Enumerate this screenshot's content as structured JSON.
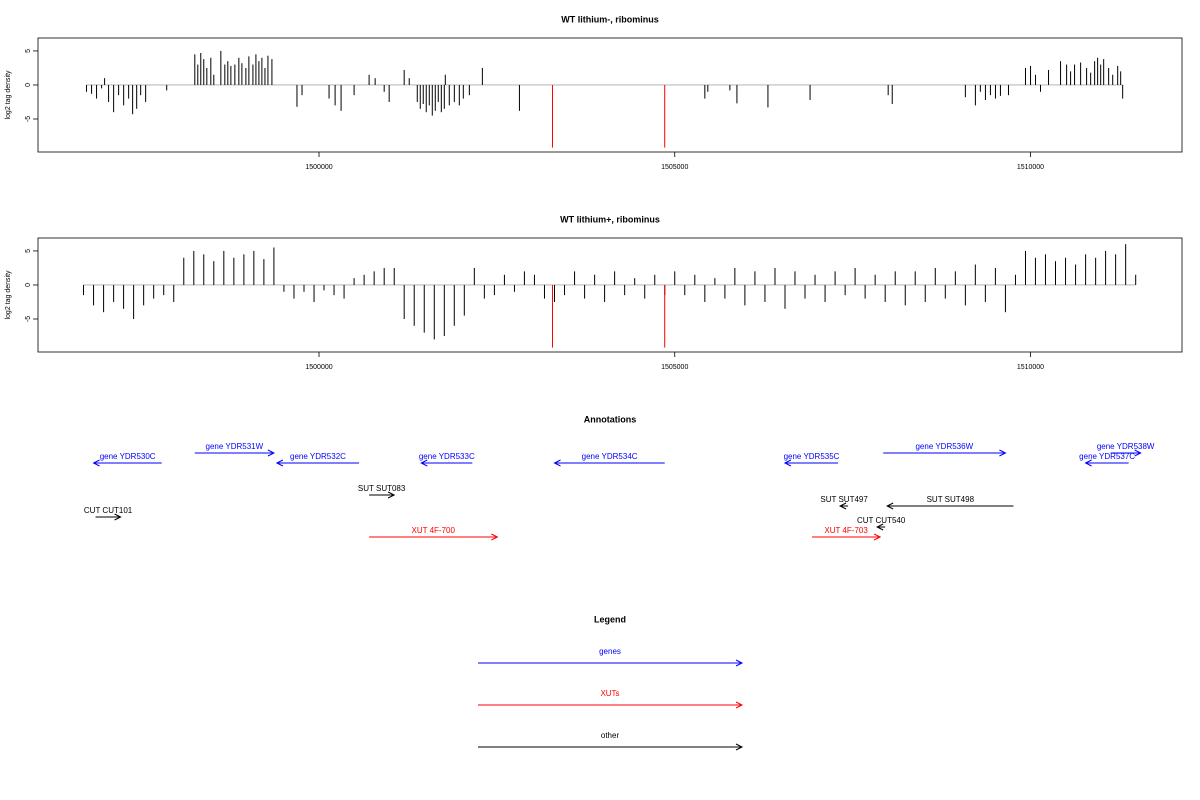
{
  "chart_data": [
    {
      "type": "bar",
      "title": "WT lithium-, ribominus",
      "y_label": "log2 tag density",
      "color": "#000000",
      "xlim": [
        1496050,
        1512130
      ],
      "xticks": [
        1500000,
        1505000,
        1510000
      ],
      "ylim": [
        -9.85,
        6.9
      ],
      "yticks": [
        -5,
        0,
        5
      ],
      "x": [
        1496732,
        1496803,
        1496873,
        1496944,
        1496986,
        1497042,
        1497113,
        1497183,
        1497254,
        1497324,
        1497380,
        1497437,
        1497493,
        1497563,
        1497859,
        1498254,
        1498296,
        1498338,
        1498380,
        1498423,
        1498479,
        1498521,
        1498620,
        1498676,
        1498718,
        1498761,
        1498817,
        1498873,
        1498916,
        1498972,
        1499014,
        1499071,
        1499113,
        1499155,
        1499197,
        1499240,
        1499282,
        1499338,
        1499690,
        1499761,
        1500141,
        1500226,
        1500310,
        1500493,
        1500704,
        1500789,
        1500916,
        1500986,
        1501197,
        1501268,
        1501381,
        1501423,
        1501465,
        1501507,
        1501550,
        1501592,
        1501634,
        1501676,
        1501719,
        1501761,
        1501775,
        1501831,
        1501902,
        1501972,
        1502028,
        1502113,
        1502296,
        1502817,
        1505423,
        1505465,
        1505775,
        1505874,
        1506310,
        1506902,
        1508000,
        1508057,
        1509085,
        1509226,
        1509296,
        1509367,
        1509437,
        1509508,
        1509578,
        1509691,
        1509930,
        1510001,
        1510071,
        1510141,
        1510254,
        1510423,
        1510508,
        1510564,
        1510620,
        1510705,
        1510789,
        1510846,
        1510902,
        1510944,
        1510987,
        1511029,
        1511099,
        1511156,
        1511226,
        1511268,
        1511296
      ],
      "values": [
        -1,
        -1.3,
        -2,
        -0.5,
        1,
        -2.5,
        -4,
        -1.5,
        -3,
        -2,
        -4.3,
        -3.5,
        -1.5,
        -2.5,
        -0.8,
        4.5,
        3,
        4.7,
        3.8,
        2.5,
        4,
        1.5,
        5,
        3,
        3.5,
        2.8,
        3,
        4,
        3.2,
        2.5,
        4.2,
        3,
        4.5,
        3.5,
        4,
        2.5,
        4.3,
        3.8,
        -3.2,
        -1.5,
        -2,
        -3,
        -3.8,
        -1.5,
        1.5,
        1,
        -1,
        -2.5,
        2.2,
        1,
        -2.5,
        -3.5,
        -2.8,
        -4,
        -3,
        -4.5,
        -3.8,
        -2.5,
        -4,
        -3.5,
        1.5,
        -3,
        -2.5,
        -3,
        -2,
        -1.5,
        2.5,
        -3.8,
        -2,
        -1,
        -0.8,
        -2.7,
        -3.3,
        -2.2,
        -1.5,
        -2.8,
        -1.8,
        -3,
        -1,
        -2.2,
        -1.5,
        -2,
        -1.6,
        -1.5,
        2.5,
        2.8,
        1.5,
        -1,
        2.2,
        3.5,
        3,
        2,
        3,
        3.3,
        2.5,
        1.8,
        3.5,
        4,
        3,
        3.8,
        2.5,
        1.5,
        2.8,
        2,
        -2
      ],
      "highlight": {
        "color": "#ff0000",
        "x": [
          1503282,
          1504859
        ],
        "values": [
          -9.2,
          -9.2
        ]
      }
    },
    {
      "type": "bar",
      "title": "WT lithium+, ribominus",
      "y_label": "log2 tag density",
      "color": "#000000",
      "xlim": [
        1496050,
        1512130
      ],
      "xticks": [
        1500000,
        1505000,
        1510000
      ],
      "ylim": [
        -9.85,
        6.9
      ],
      "yticks": [
        -5,
        0,
        5
      ],
      "x": [
        1496690,
        1496831,
        1496972,
        1497113,
        1497253,
        1497394,
        1497535,
        1497676,
        1497817,
        1497958,
        1498099,
        1498240,
        1498380,
        1498521,
        1498662,
        1498803,
        1498944,
        1499084,
        1499225,
        1499366,
        1499507,
        1499648,
        1499789,
        1499930,
        1500070,
        1500211,
        1500352,
        1500493,
        1500634,
        1500775,
        1500916,
        1501057,
        1501197,
        1501338,
        1501479,
        1501620,
        1501761,
        1501901,
        1502042,
        1502183,
        1502324,
        1502465,
        1502606,
        1502747,
        1502887,
        1503028,
        1503169,
        1503310,
        1503451,
        1503592,
        1503733,
        1503874,
        1504014,
        1504155,
        1504296,
        1504437,
        1504578,
        1504719,
        1504860,
        1505000,
        1505141,
        1505282,
        1505423,
        1505564,
        1505705,
        1505845,
        1505986,
        1506127,
        1506268,
        1506409,
        1506550,
        1506690,
        1506831,
        1506972,
        1507113,
        1507254,
        1507395,
        1507535,
        1507676,
        1507817,
        1507958,
        1508099,
        1508240,
        1508380,
        1508521,
        1508662,
        1508803,
        1508944,
        1509085,
        1509225,
        1509366,
        1509507,
        1509648,
        1509789,
        1509930,
        1510070,
        1510211,
        1510352,
        1510493,
        1510634,
        1510775,
        1510916,
        1511056,
        1511197,
        1511338,
        1511479
      ],
      "values": [
        -1.5,
        -3,
        -4,
        -2.5,
        -3.5,
        -5,
        -3,
        -2,
        -1.5,
        -2.5,
        4,
        5,
        4.5,
        3.5,
        5,
        4,
        4.5,
        5,
        3.8,
        5.5,
        -1,
        -2,
        -1,
        -2.5,
        -0.8,
        -1.5,
        -2,
        1,
        1.5,
        2,
        2.5,
        2.5,
        -5,
        -6,
        -7,
        -8,
        -7.5,
        -6,
        -4.5,
        2.5,
        -2,
        -1.5,
        1.5,
        -1,
        2,
        1.5,
        -2,
        -2.5,
        -1.5,
        2,
        -2,
        1.5,
        -2.5,
        2,
        -1.5,
        1,
        -2,
        1.5,
        -1.5,
        2,
        -1.5,
        1.5,
        -2.5,
        1,
        -2,
        2.5,
        -3,
        2,
        -2.5,
        2.5,
        -3.5,
        2,
        -2,
        1.5,
        -2.5,
        2,
        -1.5,
        2.5,
        -2,
        1.5,
        -2.5,
        2,
        -3,
        2,
        -2.5,
        2.5,
        -2,
        2,
        -3,
        3,
        -2.5,
        2.5,
        -4,
        1.5,
        5,
        4,
        4.5,
        3.5,
        4,
        3,
        4.5,
        4,
        5,
        4.5,
        6,
        1.5
      ],
      "highlight": {
        "color": "#ff0000",
        "x": [
          1503282,
          1504859
        ],
        "values": [
          -9.2,
          -9.2
        ]
      }
    },
    {
      "type": "annotation",
      "title": "Annotations",
      "xlim": [
        1496050,
        1512130
      ],
      "features": [
        {
          "label": "gene YDR530C",
          "kind": "gene",
          "start": 1496831,
          "end": 1497789,
          "strand": "-",
          "color": "#0000ff"
        },
        {
          "label": "gene YDR531W",
          "kind": "gene",
          "start": 1498254,
          "end": 1499366,
          "strand": "+",
          "color": "#0000ff"
        },
        {
          "label": "gene YDR532C",
          "kind": "gene",
          "start": 1499408,
          "end": 1500563,
          "strand": "-",
          "color": "#0000ff"
        },
        {
          "label": "gene YDR533C",
          "kind": "gene",
          "start": 1501437,
          "end": 1502155,
          "strand": "-",
          "color": "#0000ff"
        },
        {
          "label": "gene YDR534C",
          "kind": "gene",
          "start": 1503310,
          "end": 1504859,
          "strand": "-",
          "color": "#0000ff"
        },
        {
          "label": "gene YDR535C",
          "kind": "gene",
          "start": 1506549,
          "end": 1507296,
          "strand": "-",
          "color": "#0000ff"
        },
        {
          "label": "gene YDR536W",
          "kind": "gene",
          "start": 1507930,
          "end": 1509648,
          "strand": "+",
          "color": "#0000ff"
        },
        {
          "label": "gene YDR537C",
          "kind": "gene",
          "start": 1510775,
          "end": 1511380,
          "strand": "-",
          "color": "#0000ff"
        },
        {
          "label": "gene YDR538W",
          "kind": "gene",
          "start": 1511127,
          "end": 1511549,
          "strand": "+",
          "color": "#0000ff"
        },
        {
          "label": "SUT SUT083",
          "kind": "SUT",
          "start": 1500704,
          "end": 1501056,
          "strand": "+",
          "color": "#000000"
        },
        {
          "label": "CUT CUT101",
          "kind": "CUT",
          "start": 1496859,
          "end": 1497211,
          "strand": "+",
          "color": "#000000"
        },
        {
          "label": "XUT 4F-700",
          "kind": "XUT",
          "start": 1500704,
          "end": 1502507,
          "strand": "+",
          "color": "#ff0000"
        },
        {
          "label": "SUT SUT497",
          "kind": "SUT",
          "start": 1507324,
          "end": 1507437,
          "strand": "-",
          "color": "#000000"
        },
        {
          "label": "SUT SUT498",
          "kind": "SUT",
          "start": 1507986,
          "end": 1509761,
          "strand": "-",
          "color": "#000000"
        },
        {
          "label": "CUT CUT540",
          "kind": "CUT",
          "start": 1507845,
          "end": 1507958,
          "strand": "-",
          "color": "#000000"
        },
        {
          "label": "XUT 4F-703",
          "kind": "XUT",
          "start": 1506930,
          "end": 1507887,
          "strand": "+",
          "color": "#ff0000"
        }
      ],
      "legend": {
        "title": "Legend",
        "items": [
          {
            "name": "genes",
            "color": "#0000ff"
          },
          {
            "name": "XUTs",
            "color": "#ff0000"
          },
          {
            "name": "other",
            "color": "#000000"
          }
        ]
      }
    }
  ]
}
